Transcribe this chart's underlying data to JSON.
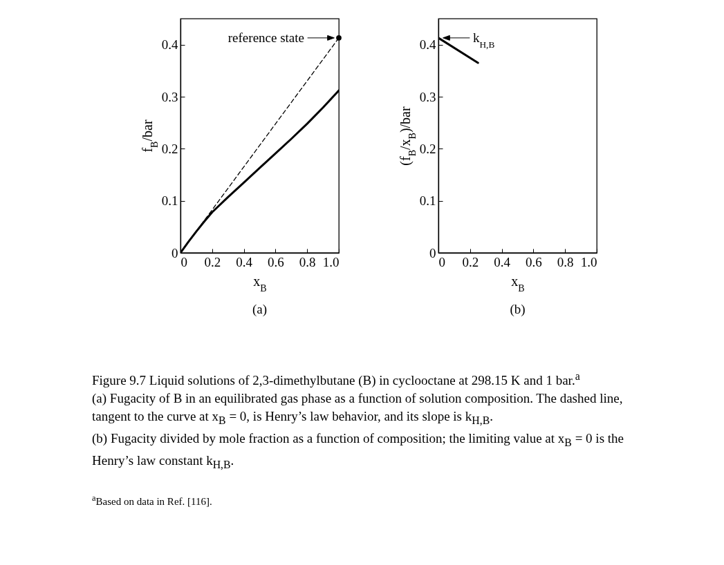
{
  "chart_data": [
    {
      "type": "line",
      "title": "(a)",
      "xlabel": "x$_{B}$",
      "ylabel": "f$_{B}$/bar",
      "xlim": [
        0,
        1
      ],
      "ylim": [
        0,
        0.45
      ],
      "xticks": [
        0,
        0.2,
        0.4,
        0.6,
        0.8,
        {
          "value": 1,
          "label": "1.0"
        }
      ],
      "yticks": [
        0,
        0.1,
        0.2,
        0.3,
        0.4
      ],
      "grid": false,
      "series": [
        {
          "type": "line",
          "color": "#000000",
          "line_style": "solid",
          "x": [
            0,
            0.05,
            0.1,
            0.15,
            0.2,
            0.3,
            0.4,
            0.5,
            0.6,
            0.7,
            0.8,
            0.9,
            1
          ],
          "values": [
            0,
            0.021,
            0.041,
            0.06,
            0.078,
            0.107,
            0.135,
            0.163,
            0.191,
            0.219,
            0.248,
            0.279,
            0.312
          ]
        },
        {
          "type": "line",
          "color": "#000000",
          "line_style": "dashed",
          "x": [
            0,
            1
          ],
          "values": [
            0,
            0.413
          ]
        },
        {
          "type": "scatter",
          "color": "#000000",
          "marker": "circle",
          "x": [
            1
          ],
          "values": [
            0.413
          ]
        }
      ],
      "annotations": [
        {
          "text": "reference state",
          "x": 1,
          "y": 0.413
        },
        "Figure 9.7  Liquid solutions of 2,3-dimethylbutane (B) in cyclooctane at 298.15 K and 1 bar.$^{a}$",
        "(a) Fugacity of B in an equilibrated gas phase as a function of solution composition. The dashed line, tangent to the curve at x$_{B}$ = 0, is Henry’s law behavior, and its slope is k$_{H,B}$.",
        "(b) Fugacity divided by mole fraction as a function of composition; the limiting value at x$_{B}$ = 0 is the Henry’s law constant k$_{H,B}$.",
        "$^{a}$Based on data in Ref. [116]."
      ]
    },
    {
      "type": "line",
      "title": "(b)",
      "xlabel": "x$_{B}$",
      "ylabel": "(f$_{B}$/x$_{B}$)/bar",
      "xlim": [
        0,
        1
      ],
      "ylim": [
        0,
        0.45
      ],
      "xticks": [
        0,
        0.2,
        0.4,
        0.6,
        0.8,
        {
          "value": 1,
          "label": "1.0"
        }
      ],
      "yticks": [
        0,
        0.1,
        0.2,
        0.3,
        0.4
      ],
      "grid": false,
      "series": [
        {
          "type": "line",
          "color": "#000000",
          "line_style": "solid",
          "x": [
            0,
            0.25
          ],
          "values": [
            0.413,
            0.365
          ]
        }
      ],
      "annotations": [
        {
          "text": "k$_{H,B}$",
          "x": 0,
          "y": 0.413
        }
      ]
    }
  ]
}
